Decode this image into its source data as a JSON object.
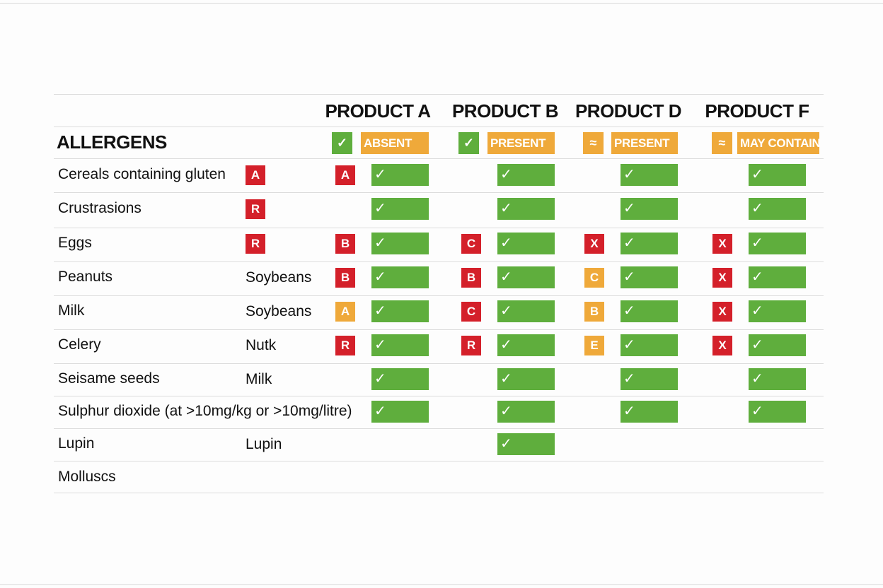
{
  "title": "ALLERGENS",
  "symbols": {
    "check": "✓",
    "warn": "≈"
  },
  "colors": {
    "red": "#d4202a",
    "orange": "#efa93a",
    "green": "#5fae3d"
  },
  "products": [
    {
      "name": "PRODUCT A",
      "legend_icon": "check-icon",
      "legend_label": "ABSENT"
    },
    {
      "name": "PRODUCT B",
      "legend_icon": "check-icon",
      "legend_label": "PRESENT"
    },
    {
      "name": "PRODUCT D",
      "legend_icon": "warning-icon",
      "legend_label": "PRESENT"
    },
    {
      "name": "PRODUCT F",
      "legend_icon": "warning-icon",
      "legend_label": "MAY CONTAIN"
    }
  ],
  "rows": [
    {
      "name": "Cereals containing gluten",
      "secondary": "",
      "code": "A",
      "cells": [
        {
          "badge": "A",
          "color": "red",
          "check": true
        },
        {
          "badge": "",
          "color": "",
          "check": true
        },
        {
          "badge": "",
          "color": "",
          "check": true
        },
        {
          "badge": "",
          "color": "",
          "check": true
        }
      ]
    },
    {
      "name": "Crustrasions",
      "secondary": "",
      "code": "R",
      "cells": [
        {
          "badge": "",
          "color": "",
          "check": true
        },
        {
          "badge": "",
          "color": "",
          "check": true
        },
        {
          "badge": "",
          "color": "",
          "check": true
        },
        {
          "badge": "",
          "color": "",
          "check": true
        }
      ]
    },
    {
      "name": "Eggs",
      "secondary": "",
      "code": "R",
      "cells": [
        {
          "badge": "B",
          "color": "red",
          "check": true
        },
        {
          "badge": "C",
          "color": "red",
          "check": true
        },
        {
          "badge": "X",
          "color": "red",
          "check": true
        },
        {
          "badge": "X",
          "color": "red",
          "check": true
        }
      ]
    },
    {
      "name": "Peanuts",
      "secondary": "Soybeans",
      "code": "",
      "cells": [
        {
          "badge": "B",
          "color": "red",
          "check": true
        },
        {
          "badge": "B",
          "color": "red",
          "check": true
        },
        {
          "badge": "C",
          "color": "orange",
          "check": true
        },
        {
          "badge": "X",
          "color": "red",
          "check": true
        }
      ]
    },
    {
      "name": "Milk",
      "secondary": "Soybeans",
      "code": "",
      "cells": [
        {
          "badge": "A",
          "color": "orange",
          "check": true
        },
        {
          "badge": "C",
          "color": "red",
          "check": true
        },
        {
          "badge": "B",
          "color": "orange",
          "check": true
        },
        {
          "badge": "X",
          "color": "red",
          "check": true
        }
      ]
    },
    {
      "name": "Celery",
      "secondary": "Nutk",
      "code": "",
      "cells": [
        {
          "badge": "R",
          "color": "red",
          "check": true
        },
        {
          "badge": "R",
          "color": "red",
          "check": true
        },
        {
          "badge": "E",
          "color": "orange",
          "check": true
        },
        {
          "badge": "X",
          "color": "red",
          "check": true
        }
      ]
    },
    {
      "name": "Seisame seeds",
      "secondary": "Milk",
      "code": "",
      "cells": [
        {
          "badge": "",
          "color": "",
          "check": true
        },
        {
          "badge": "",
          "color": "",
          "check": true
        },
        {
          "badge": "",
          "color": "",
          "check": true
        },
        {
          "badge": "",
          "color": "",
          "check": true
        }
      ]
    },
    {
      "name": "Sulphur dioxide (at >10mg/kg or >10mg/litre)",
      "secondary": "",
      "code": "",
      "cells": [
        {
          "badge": "",
          "color": "",
          "check": true
        },
        {
          "badge": "",
          "color": "",
          "check": true
        },
        {
          "badge": "",
          "color": "",
          "check": true
        },
        {
          "badge": "",
          "color": "",
          "check": true
        }
      ]
    },
    {
      "name": "Lupin",
      "secondary": "Lupin",
      "code": "",
      "cells": [
        {
          "badge": "",
          "color": "",
          "check": false
        },
        {
          "badge": "",
          "color": "",
          "check": true
        },
        {
          "badge": "",
          "color": "",
          "check": false
        },
        {
          "badge": "",
          "color": "",
          "check": false
        }
      ]
    },
    {
      "name": "Molluscs",
      "secondary": "",
      "code": "",
      "cells": [
        {
          "badge": "",
          "color": "",
          "check": false
        },
        {
          "badge": "",
          "color": "",
          "check": false
        },
        {
          "badge": "",
          "color": "",
          "check": false
        },
        {
          "badge": "",
          "color": "",
          "check": false
        }
      ]
    }
  ]
}
